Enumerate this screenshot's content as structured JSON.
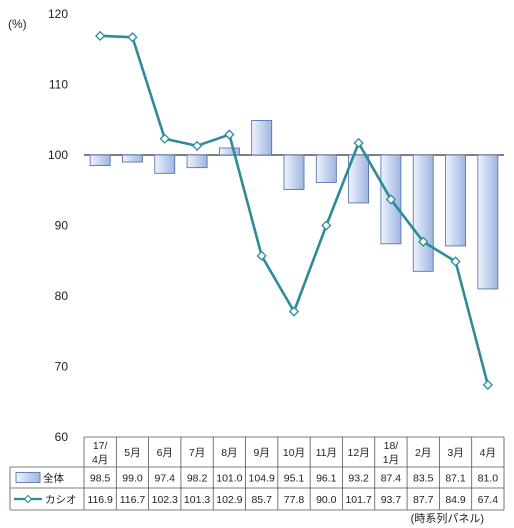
{
  "chart_data": {
    "type": "bar+line",
    "y_unit_label": "(%)",
    "ylim": [
      60,
      120
    ],
    "y_ticks": [
      60,
      70,
      80,
      90,
      100,
      110,
      120
    ],
    "baseline": 100,
    "grid": false,
    "categories": [
      [
        "17/",
        "4月"
      ],
      [
        "5月"
      ],
      [
        "6月"
      ],
      [
        "7月"
      ],
      [
        "8月"
      ],
      [
        "9月"
      ],
      [
        "10月"
      ],
      [
        "11月"
      ],
      [
        "12月"
      ],
      [
        "18/",
        "1月"
      ],
      [
        "2月"
      ],
      [
        "3月"
      ],
      [
        "4月"
      ]
    ],
    "series": [
      {
        "name": "全体",
        "type": "bar",
        "color": "#9fb6e0",
        "values": [
          98.5,
          99.0,
          97.4,
          98.2,
          101.0,
          104.9,
          95.1,
          96.1,
          93.2,
          87.4,
          83.5,
          87.1,
          81.0
        ],
        "labels": [
          "98.5",
          "99.0",
          "97.4",
          "98.2",
          "101.0",
          "104.9",
          "95.1",
          "96.1",
          "93.2",
          "87.4",
          "83.5",
          "87.1",
          "81.0"
        ]
      },
      {
        "name": "カシオ",
        "type": "line",
        "color": "#2e8b9a",
        "values": [
          116.9,
          116.7,
          102.3,
          101.3,
          102.9,
          85.7,
          77.8,
          90.0,
          101.7,
          93.7,
          87.7,
          84.9,
          67.4
        ],
        "labels": [
          "116.9",
          "116.7",
          "102.3",
          "101.3",
          "102.9",
          "85.7",
          "77.8",
          "90.0",
          "101.7",
          "93.7",
          "87.7",
          "84.9",
          "67.4"
        ]
      }
    ],
    "note": "(時系列パネル)"
  }
}
